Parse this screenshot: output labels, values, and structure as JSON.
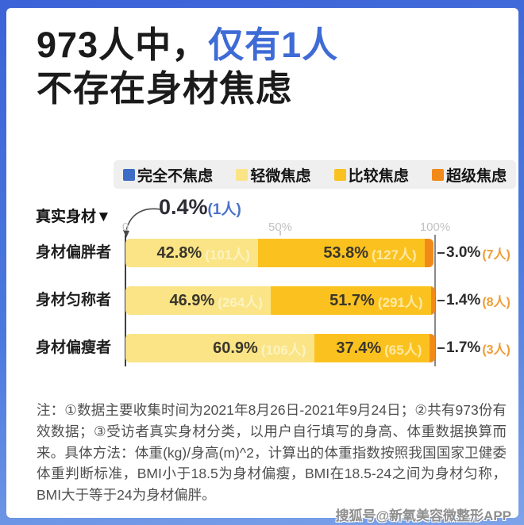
{
  "title": {
    "line1_prefix": "973人中，",
    "line1_highlight": "仅有1人",
    "line2": "不存在身材焦虑"
  },
  "colors": {
    "accent_blue": "#3e6bd5",
    "legend_blue": "#3d6cc6",
    "mild_yellow": "#fae486",
    "moderate_gold": "#fbc21f",
    "super_orange": "#f28a19",
    "frame_blue_top": "#3c63d7",
    "frame_blue_bottom": "#7da3e9"
  },
  "legend": {
    "items": [
      {
        "label": "完全不焦虑",
        "color": "#3d6cc6"
      },
      {
        "label": "轻微焦虑",
        "color": "#fae486"
      },
      {
        "label": "比较焦虑",
        "color": "#fbc21f"
      },
      {
        "label": "超级焦虑",
        "color": "#f28a19"
      }
    ]
  },
  "chart_data": {
    "type": "bar",
    "orientation": "horizontal-stacked",
    "axis_title": "真实身材▼",
    "ticks": [
      {
        "label": "0",
        "pct": 0
      },
      {
        "label": "50%",
        "pct": 50
      },
      {
        "label": "100%",
        "pct": 100
      }
    ],
    "xlim": [
      0,
      100
    ],
    "annotation": {
      "series": "完全不焦虑",
      "pct_label": "0.4%",
      "count_label": "(1人)"
    },
    "categories": [
      "身材偏胖者",
      "身材匀称者",
      "身材偏瘦者"
    ],
    "series": [
      {
        "name": "轻微焦虑",
        "values": [
          42.8,
          46.9,
          60.9
        ],
        "counts": [
          101,
          264,
          106
        ]
      },
      {
        "name": "比较焦虑",
        "values": [
          53.8,
          51.7,
          37.4
        ],
        "counts": [
          127,
          291,
          65
        ]
      },
      {
        "name": "超级焦虑",
        "values": [
          3.0,
          1.4,
          1.7
        ],
        "counts": [
          7,
          8,
          3
        ]
      }
    ],
    "rows": [
      {
        "label": "身材偏胖者",
        "segments": [
          {
            "series": "轻微焦虑",
            "pct": 42.8,
            "pct_label": "42.8%",
            "count_label": "(101人)",
            "color": "#fae486",
            "count_color": "#fdf3c0"
          },
          {
            "series": "比较焦虑",
            "pct": 53.8,
            "pct_label": "53.8%",
            "count_label": "(127人)",
            "color": "#fbc21f",
            "count_color": "#ffe9a2"
          },
          {
            "series": "超级焦虑",
            "pct": 3.0,
            "color": "#f28a19"
          }
        ],
        "outside": {
          "pct_label": "3.0%",
          "count_label": "(7人)"
        }
      },
      {
        "label": "身材匀称者",
        "segments": [
          {
            "series": "轻微焦虑",
            "pct": 46.9,
            "pct_label": "46.9%",
            "count_label": "(264人)",
            "color": "#fae486",
            "count_color": "#fdf3c0"
          },
          {
            "series": "比较焦虑",
            "pct": 51.7,
            "pct_label": "51.7%",
            "count_label": "(291人)",
            "color": "#fbc21f",
            "count_color": "#ffe9a2"
          },
          {
            "series": "超级焦虑",
            "pct": 1.4,
            "color": "#f28a19"
          }
        ],
        "outside": {
          "pct_label": "1.4%",
          "count_label": "(8人)"
        }
      },
      {
        "label": "身材偏瘦者",
        "segments": [
          {
            "series": "轻微焦虑",
            "pct": 60.9,
            "pct_label": "60.9%",
            "count_label": "(106人)",
            "color": "#fae486",
            "count_color": "#fdf3c0"
          },
          {
            "series": "比较焦虑",
            "pct": 37.4,
            "pct_label": "37.4%",
            "count_label": "(65人)",
            "color": "#fbc21f",
            "count_color": "#ffe9a2"
          },
          {
            "series": "超级焦虑",
            "pct": 1.7,
            "color": "#f28a19"
          }
        ],
        "outside": {
          "pct_label": "1.7%",
          "count_label": "(3人)"
        }
      }
    ]
  },
  "note": "注：①数据主要收集时间为2021年8月26日-2021年9月24日；②共有973份有效数据；③受访者真实身材分类，以用户自行填写的身高、体重数据换算而来。具体方法：体重(kg)/身高(m)^2，计算出的体重指数按照我国国家卫健委体重判断标准，BMI小于18.5为身材偏瘦，BMI在18.5-24之间为身材匀称，BMI大于等于24为身材偏胖。",
  "watermark": "搜狐号@新氧美容微整形APP"
}
